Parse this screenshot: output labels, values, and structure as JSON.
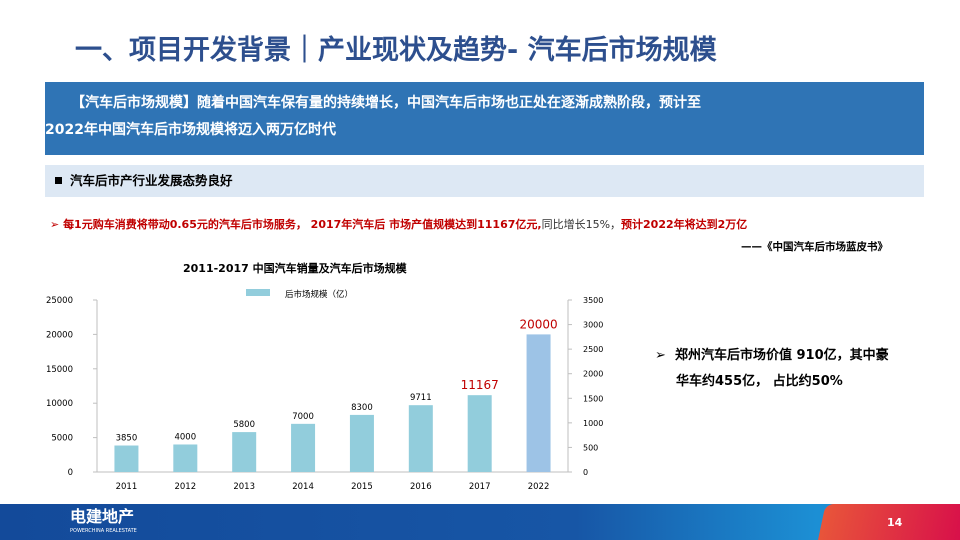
{
  "title": "一、项目开发背景｜产业现状及趋势- 汽车后市场规模",
  "banner": {
    "line1": "【汽车后市场规模】随着中国汽车保有量的持续增长，中国汽车后市场也正处在逐渐成熟阶段，预计至",
    "line2": "2022年中国汽车后市场规模将迈入两万亿时代"
  },
  "subheader": "汽车后市产行业发展态势良好",
  "point": {
    "arrow": "➢",
    "red1": "每1元购车消费将带动0.65元的汽车后市场服务， 2017年汽车后 市场产值规模达到11167亿元,",
    "black": "同比增长15%，",
    "red2": "预计2022年将达到2万亿"
  },
  "source": "——《中国汽车后市场蓝皮书》",
  "side": {
    "arrow": "➢",
    "line1": "郑州汽车后市场价值 910亿，其中豪",
    "line2": "华车约455亿， 占比约50%"
  },
  "footer": {
    "logo": "电建地产",
    "logo_sub": "POWERCHINA REALESTATE",
    "page": "14"
  },
  "chart_data": {
    "type": "bar",
    "title": "2011-2017 中国汽车销量及汽车后市场规模",
    "legend": "后市场规模（亿）",
    "legend_position": "top",
    "categories": [
      "2011",
      "2012",
      "2013",
      "2014",
      "2015",
      "2016",
      "2017",
      "2022"
    ],
    "values": [
      3850,
      4000,
      5800,
      7000,
      8300,
      9711,
      11167,
      20000
    ],
    "data_labels": [
      "3850",
      "4000",
      "5800",
      "7000",
      "8300",
      "9711",
      "11167",
      "20000"
    ],
    "highlight_labels": [
      "11167",
      "20000"
    ],
    "ylim": [
      0,
      25000
    ],
    "yticks": [
      0,
      5000,
      10000,
      15000,
      20000,
      25000
    ],
    "y2lim": [
      0,
      3500
    ],
    "y2ticks": [
      0,
      500,
      1000,
      1500,
      2000,
      2500,
      3000,
      3500
    ],
    "colors": {
      "bar": "#92cddc",
      "forecast": "#9dc3e6",
      "highlight_label": "#c00000"
    },
    "grid": false
  }
}
